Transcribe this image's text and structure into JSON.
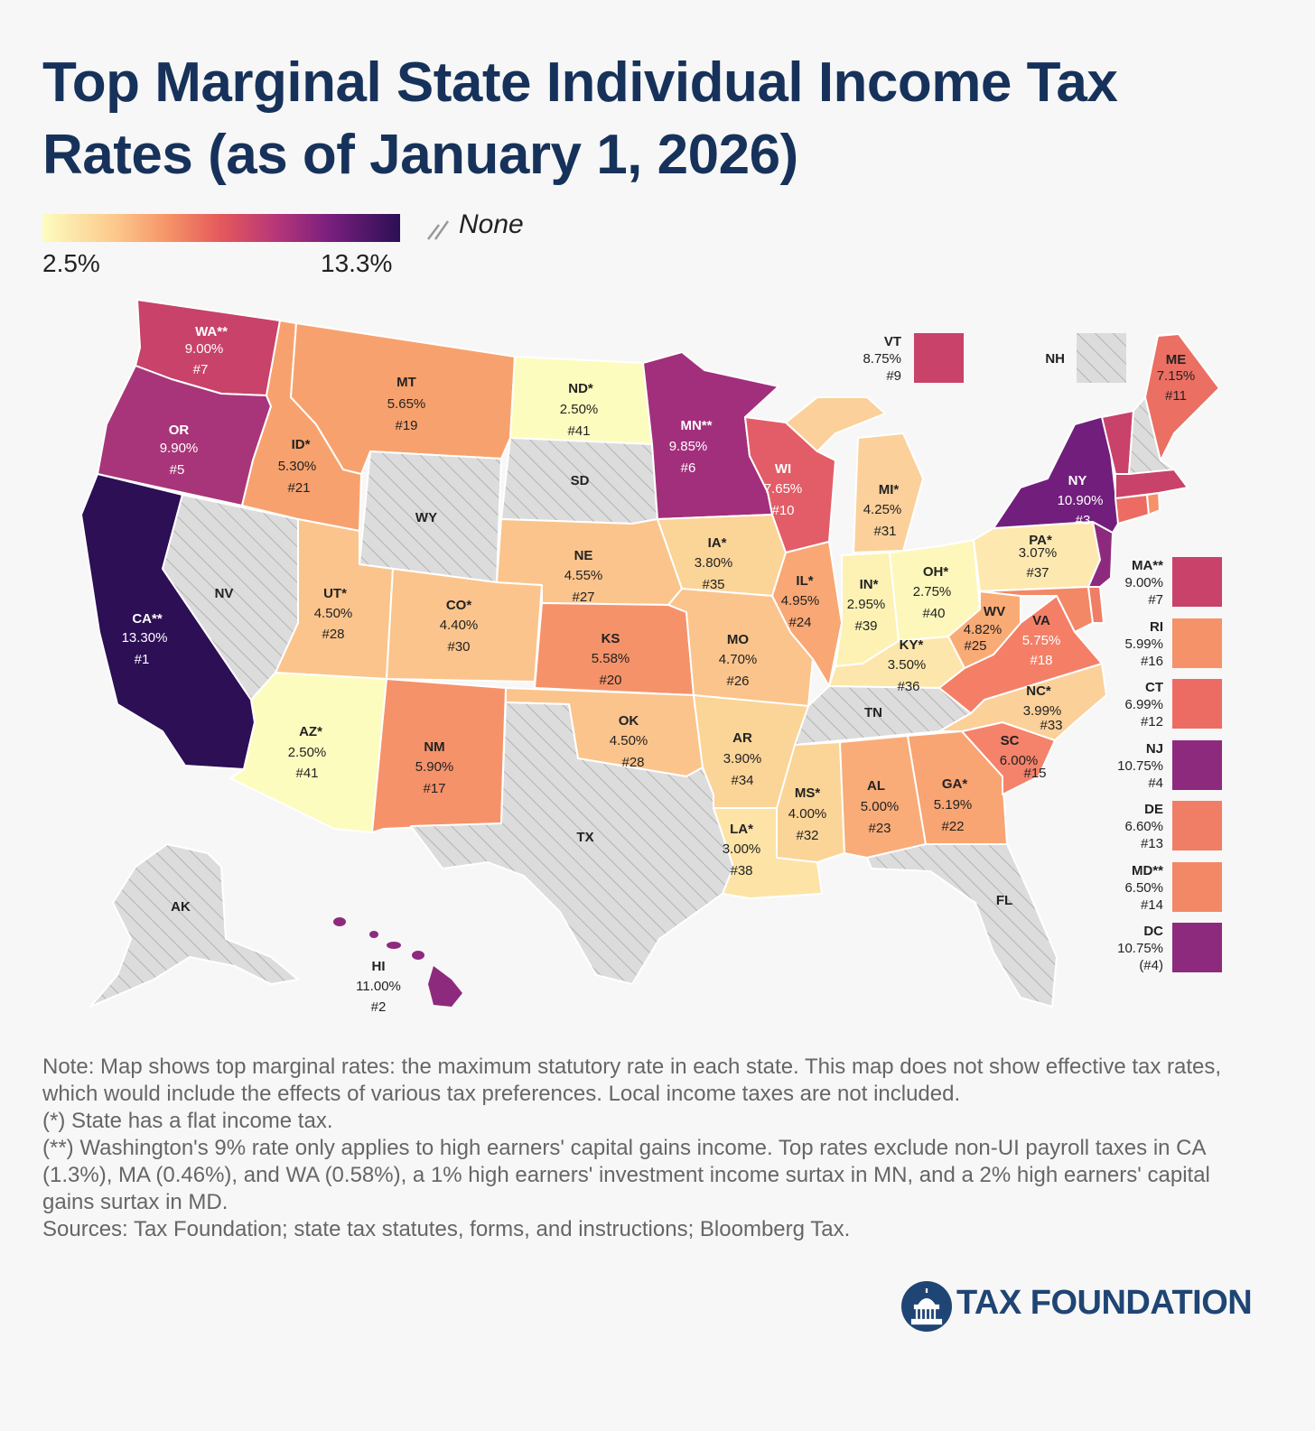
{
  "title": "Top Marginal State Individual Income Tax Rates (as of January 1, 2026)",
  "legend": {
    "min_label": "2.5%",
    "max_label": "13.3%",
    "none_label": "None",
    "color_low": "#fdfcbf",
    "color_high": "#2c0f55",
    "none_color": "#dcdcdc"
  },
  "states": {
    "WA": {
      "abbr": "WA**",
      "rate": "9.00%",
      "rank": "#7"
    },
    "OR": {
      "abbr": "OR",
      "rate": "9.90%",
      "rank": "#5"
    },
    "CA": {
      "abbr": "CA**",
      "rate": "13.30%",
      "rank": "#1"
    },
    "NV": {
      "abbr": "NV"
    },
    "ID": {
      "abbr": "ID*",
      "rate": "5.30%",
      "rank": "#21"
    },
    "MT": {
      "abbr": "MT",
      "rate": "5.65%",
      "rank": "#19"
    },
    "WY": {
      "abbr": "WY"
    },
    "UT": {
      "abbr": "UT*",
      "rate": "4.50%",
      "rank": "#28"
    },
    "AZ": {
      "abbr": "AZ*",
      "rate": "2.50%",
      "rank": "#41"
    },
    "CO": {
      "abbr": "CO*",
      "rate": "4.40%",
      "rank": "#30"
    },
    "NM": {
      "abbr": "NM",
      "rate": "5.90%",
      "rank": "#17"
    },
    "ND": {
      "abbr": "ND*",
      "rate": "2.50%",
      "rank": "#41"
    },
    "SD": {
      "abbr": "SD"
    },
    "NE": {
      "abbr": "NE",
      "rate": "4.55%",
      "rank": "#27"
    },
    "KS": {
      "abbr": "KS",
      "rate": "5.58%",
      "rank": "#20"
    },
    "OK": {
      "abbr": "OK",
      "rate": "4.50%",
      "rank": "#28"
    },
    "TX": {
      "abbr": "TX"
    },
    "MN": {
      "abbr": "MN**",
      "rate": "9.85%",
      "rank": "#6"
    },
    "IA": {
      "abbr": "IA*",
      "rate": "3.80%",
      "rank": "#35"
    },
    "MO": {
      "abbr": "MO",
      "rate": "4.70%",
      "rank": "#26"
    },
    "AR": {
      "abbr": "AR",
      "rate": "3.90%",
      "rank": "#34"
    },
    "LA": {
      "abbr": "LA*",
      "rate": "3.00%",
      "rank": "#38"
    },
    "WI": {
      "abbr": "WI",
      "rate": "7.65%",
      "rank": "#10"
    },
    "IL": {
      "abbr": "IL*",
      "rate": "4.95%",
      "rank": "#24"
    },
    "MI": {
      "abbr": "MI*",
      "rate": "4.25%",
      "rank": "#31"
    },
    "IN": {
      "abbr": "IN*",
      "rate": "2.95%",
      "rank": "#39"
    },
    "OH": {
      "abbr": "OH*",
      "rate": "2.75%",
      "rank": "#40"
    },
    "KY": {
      "abbr": "KY*",
      "rate": "3.50%",
      "rank": "#36"
    },
    "TN": {
      "abbr": "TN"
    },
    "MS": {
      "abbr": "MS*",
      "rate": "4.00%",
      "rank": "#32"
    },
    "AL": {
      "abbr": "AL",
      "rate": "5.00%",
      "rank": "#23"
    },
    "GA": {
      "abbr": "GA*",
      "rate": "5.19%",
      "rank": "#22"
    },
    "FL": {
      "abbr": "FL"
    },
    "SC": {
      "abbr": "SC",
      "rate": "6.00%",
      "rank": "#15"
    },
    "NC": {
      "abbr": "NC*",
      "rate": "3.99%",
      "rank": "#33"
    },
    "VA": {
      "abbr": "VA",
      "rate": "5.75%",
      "rank": "#18"
    },
    "WV": {
      "abbr": "WV",
      "rate": "4.82%",
      "rank": "#25"
    },
    "PA": {
      "abbr": "PA*",
      "rate": "3.07%",
      "rank": "#37"
    },
    "NY": {
      "abbr": "NY",
      "rate": "10.90%",
      "rank": "#3"
    },
    "ME": {
      "abbr": "ME",
      "rate": "7.15%",
      "rank": "#11"
    },
    "AK": {
      "abbr": "AK"
    },
    "HI": {
      "abbr": "HI",
      "rate": "11.00%",
      "rank": "#2"
    }
  },
  "callouts": {
    "VT": {
      "abbr": "VT",
      "rate": "8.75%",
      "rank": "#9",
      "color": "#c8426a"
    },
    "NH": {
      "abbr": "NH"
    },
    "MA": {
      "abbr": "MA**",
      "rate": "9.00%",
      "rank": "#7",
      "color": "#c8426a"
    },
    "RI": {
      "abbr": "RI",
      "rate": "5.99%",
      "rank": "#16",
      "color": "#f5926a"
    },
    "CT": {
      "abbr": "CT",
      "rate": "6.99%",
      "rank": "#12",
      "color": "#ec6c63"
    },
    "NJ": {
      "abbr": "NJ",
      "rate": "10.75%",
      "rank": "#4",
      "color": "#8e2a7e"
    },
    "DE": {
      "abbr": "DE",
      "rate": "6.60%",
      "rank": "#13",
      "color": "#f07e66"
    },
    "MD": {
      "abbr": "MD**",
      "rate": "6.50%",
      "rank": "#14",
      "color": "#f28866"
    },
    "DC": {
      "abbr": "DC",
      "rate": "10.75%",
      "rank": "(#4)",
      "color": "#8e2a7e"
    }
  },
  "notes": {
    "line1": "Note: Map shows top marginal rates: the maximum statutory rate in each state. This map does not show effective tax rates, which would include the effects of various tax preferences. Local income taxes are not included.",
    "line2": "(*) State has a flat income tax.",
    "line3": "(**) Washington's 9% rate only applies to high earners' capital gains income. Top rates exclude non-UI payroll taxes in CA (1.3%), MA (0.46%), and WA (0.58%), a 1% high earners' investment income surtax in MN, and a 2% high earners' capital gains surtax in MD.",
    "line4": "Sources: Tax Foundation; state tax statutes, forms, and instructions; Bloomberg Tax."
  },
  "logo": {
    "text": "TAX FOUNDATION",
    "color": "#1f4574"
  }
}
